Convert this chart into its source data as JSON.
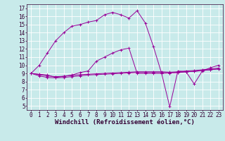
{
  "background_color": "#c8eaea",
  "grid_color": "#ffffff",
  "line_color": "#990099",
  "xlabel": "Windchill (Refroidissement éolien,°C)",
  "ylabel_ticks": [
    5,
    6,
    7,
    8,
    9,
    10,
    11,
    12,
    13,
    14,
    15,
    16,
    17
  ],
  "xlabel_ticks": [
    0,
    1,
    2,
    3,
    4,
    5,
    6,
    7,
    8,
    9,
    10,
    11,
    12,
    13,
    14,
    15,
    16,
    17,
    18,
    19,
    20,
    21,
    22,
    23
  ],
  "xlim": [
    -0.5,
    23.5
  ],
  "ylim": [
    4.5,
    17.5
  ],
  "line1_x": [
    0,
    1,
    2,
    3,
    4,
    5,
    6,
    7,
    8,
    9,
    10,
    11,
    12,
    13,
    14,
    15,
    16,
    17,
    18,
    19,
    20,
    21,
    22,
    23
  ],
  "line1_y": [
    9.0,
    10.0,
    11.5,
    13.0,
    14.0,
    14.8,
    15.0,
    15.3,
    15.5,
    16.2,
    16.5,
    16.2,
    15.8,
    16.7,
    15.2,
    12.3,
    9.0,
    4.9,
    9.3,
    9.2,
    7.7,
    9.3,
    9.7,
    10.0
  ],
  "line2_x": [
    0,
    1,
    2,
    3,
    4,
    5,
    6,
    7,
    8,
    9,
    10,
    11,
    12,
    13,
    14,
    15,
    16,
    17,
    18,
    19,
    20,
    21,
    22,
    23
  ],
  "line2_y": [
    9.0,
    8.85,
    8.7,
    8.6,
    8.65,
    8.75,
    8.85,
    8.9,
    8.95,
    9.0,
    9.05,
    9.1,
    9.15,
    9.2,
    9.2,
    9.2,
    9.2,
    9.15,
    9.2,
    9.3,
    9.35,
    9.45,
    9.55,
    9.65
  ],
  "line3_x": [
    0,
    1,
    2,
    3,
    4,
    5,
    6,
    7,
    8,
    9,
    10,
    11,
    12,
    13,
    14,
    15,
    16,
    17,
    18,
    19,
    20,
    21,
    22,
    23
  ],
  "line3_y": [
    9.0,
    8.7,
    8.5,
    8.45,
    8.5,
    8.6,
    8.7,
    8.8,
    8.85,
    8.9,
    8.95,
    9.0,
    9.05,
    9.1,
    9.1,
    9.1,
    9.1,
    9.05,
    9.1,
    9.2,
    9.25,
    9.35,
    9.45,
    9.55
  ],
  "line4_x": [
    0,
    1,
    2,
    3,
    4,
    5,
    6,
    7,
    8,
    9,
    10,
    11,
    12,
    13,
    14,
    15,
    16,
    17,
    18,
    19,
    20,
    21,
    22,
    23
  ],
  "line4_y": [
    9.0,
    8.9,
    8.8,
    8.5,
    8.65,
    8.8,
    9.1,
    9.3,
    10.5,
    11.0,
    11.5,
    11.9,
    12.1,
    9.0,
    9.0,
    9.0,
    9.0,
    9.05,
    9.1,
    9.2,
    9.25,
    9.35,
    9.45,
    9.55
  ],
  "font_size": 6.0,
  "tick_font_size": 5.5,
  "xlabel_font_size": 6.5
}
